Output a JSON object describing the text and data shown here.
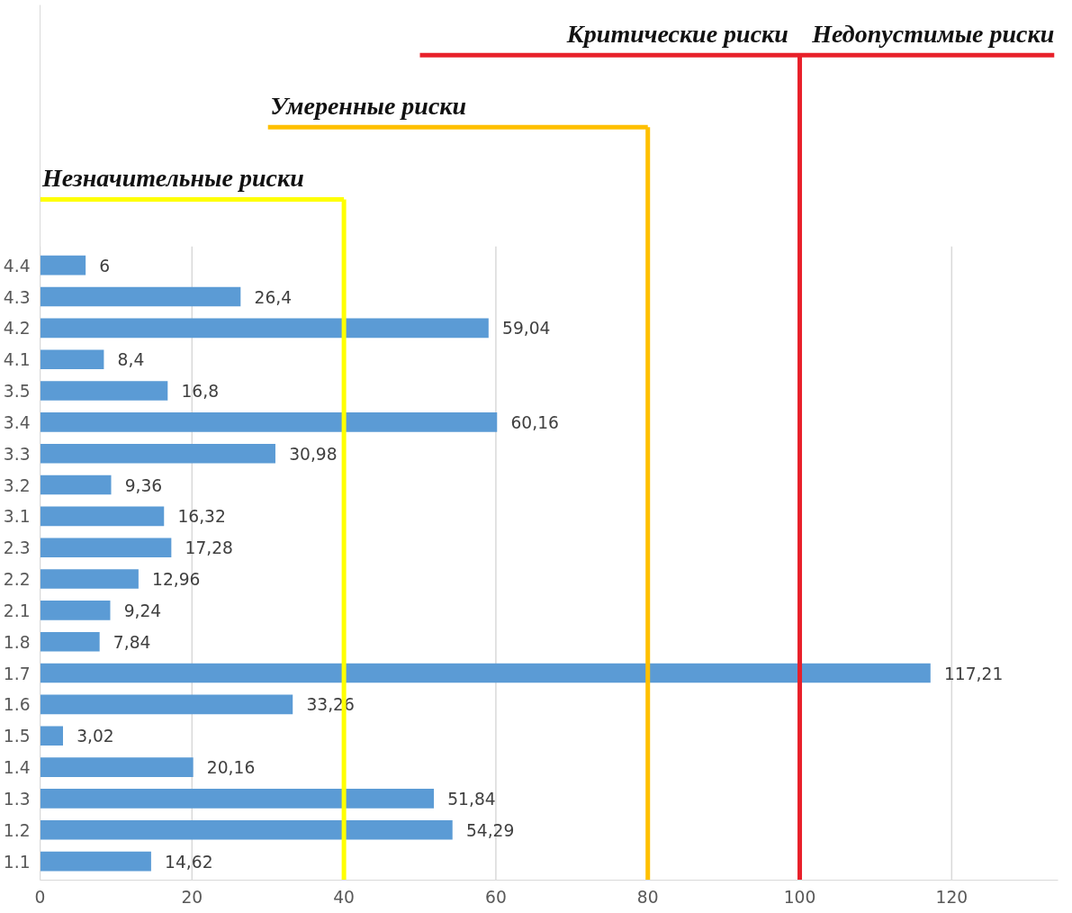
{
  "chart_data": {
    "type": "bar",
    "orientation": "horizontal",
    "categories": [
      "4.4",
      "4.3",
      "4.2",
      "4.1",
      "3.5",
      "3.4",
      "3.3",
      "3.2",
      "3.1",
      "2.3",
      "2.2",
      "2.1",
      "1.8",
      "1.7",
      "1.6",
      "1.5",
      "1.4",
      "1.3",
      "1.2",
      "1.1"
    ],
    "values": [
      6,
      26.4,
      59.04,
      8.4,
      16.8,
      60.16,
      30.98,
      9.36,
      16.32,
      17.28,
      12.96,
      9.24,
      7.84,
      117.21,
      33.26,
      3.02,
      20.16,
      51.84,
      54.29,
      14.62
    ],
    "color": "#5b9bd5",
    "data_labels": true,
    "value_labels": [
      "6",
      "26,4",
      "59,04",
      "8,4",
      "16,8",
      "60,16",
      "30,98",
      "9,36",
      "16,32",
      "17,28",
      "12,96",
      "9,24",
      "7,84",
      "117,21",
      "33,26",
      "3,02",
      "20,16",
      "51,84",
      "54,29",
      "14,62"
    ],
    "xlim": [
      0,
      134
    ],
    "xticks": [
      0,
      20,
      40,
      60,
      80,
      100,
      120
    ],
    "grid": "x",
    "ref_lines": [
      {
        "axis": "x",
        "value": 40,
        "label": "Незначительные риски",
        "color": "#ffff00"
      },
      {
        "axis": "x",
        "value": 80,
        "label": "Умеренные риски",
        "color": "#ffc000"
      },
      {
        "axis": "x",
        "value": 100,
        "label": "Критические риски",
        "color": "#e8202a"
      }
    ],
    "annotations": [
      "Недопустимые риски"
    ]
  }
}
